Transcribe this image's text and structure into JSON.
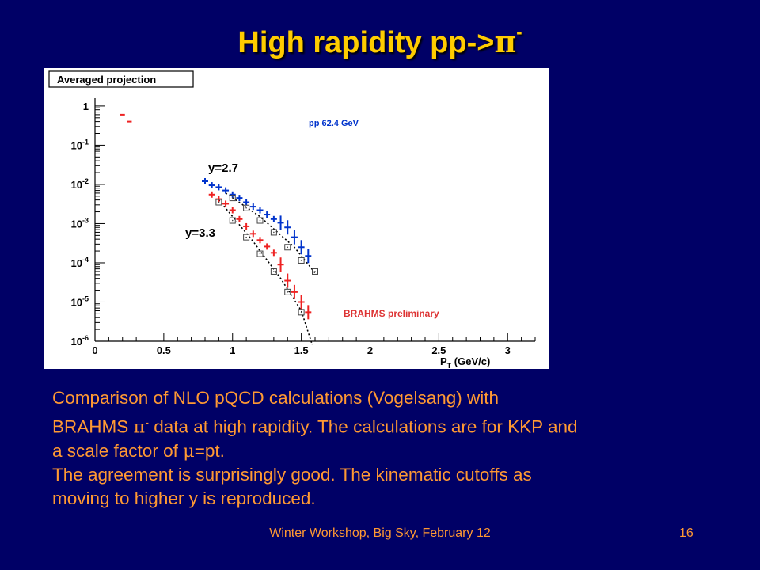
{
  "slide": {
    "title_main": "High rapidity pp->",
    "title_particle": "π",
    "title_charge": "-"
  },
  "body": {
    "line1": "Comparison of NLO pQCD calculations (Vogelsang) with",
    "line2_a": "BRAHMS ",
    "line2_pi": "π",
    "line2_charge": "-",
    "line2_b": " data at high rapidity. The calculations are for KKP and",
    "line3_a": "a scale factor of ",
    "line3_mu": "μ",
    "line3_b": "=pt.",
    "line4": "The agreement is surprisingly good. The kinematic cutoffs as",
    "line5": "moving to higher y is reproduced."
  },
  "footer": {
    "text": "Winter Workshop, Big Sky, February 12",
    "page": "16"
  },
  "colors": {
    "background": "#000066",
    "title": "#ffcc00",
    "body_text": "#ff9933",
    "series_y27": "#0033cc",
    "series_y33": "#ee2222",
    "calc_boxes": "#444444",
    "prelim": "#dd3333"
  },
  "chart_data": {
    "type": "scatter",
    "title": "Averaged projection",
    "xlabel": "P",
    "xlabel_sub": "T",
    "xlabel_unit": "(GeV/c)",
    "ylabel": "",
    "xlim": [
      0,
      3.2
    ],
    "ylim_log10": [
      -6,
      0.2
    ],
    "y_scale": "log",
    "x_ticks": [
      0,
      0.5,
      1,
      1.5,
      2,
      2.5,
      3
    ],
    "x_tick_labels": [
      "0",
      "0.5",
      "1",
      "1.5",
      "2",
      "2.5",
      "3"
    ],
    "y_ticks_log10": [
      0,
      -1,
      -2,
      -3,
      -4,
      -5,
      -6
    ],
    "y_tick_labels": [
      {
        "base": "1",
        "exp": ""
      },
      {
        "base": "10",
        "exp": "-1"
      },
      {
        "base": "10",
        "exp": "-2"
      },
      {
        "base": "10",
        "exp": "-3"
      },
      {
        "base": "10",
        "exp": "-4"
      },
      {
        "base": "10",
        "exp": "-5"
      },
      {
        "base": "10",
        "exp": "-6"
      }
    ],
    "annotations": {
      "energy": "pp 62.4 GeV",
      "label_y27": "y=2.7",
      "label_y33": "y=3.3",
      "preliminary": "BRAHMS preliminary"
    },
    "series": [
      {
        "name": "y=2.7",
        "kind": "data",
        "color": "#0033cc",
        "points": [
          [
            0.8,
            0.012
          ],
          [
            0.85,
            0.0095
          ],
          [
            0.9,
            0.0085
          ],
          [
            0.95,
            0.007
          ],
          [
            1.0,
            0.0055
          ],
          [
            1.05,
            0.0045
          ],
          [
            1.1,
            0.0035
          ],
          [
            1.15,
            0.0027
          ],
          [
            1.2,
            0.0022
          ],
          [
            1.25,
            0.0017
          ],
          [
            1.3,
            0.0013
          ],
          [
            1.35,
            0.00105
          ],
          [
            1.4,
            0.0008
          ],
          [
            1.45,
            0.00045
          ],
          [
            1.5,
            0.00025
          ],
          [
            1.55,
            0.00015
          ]
        ]
      },
      {
        "name": "y=3.3",
        "kind": "data",
        "color": "#ee2222",
        "points": [
          [
            0.85,
            0.0055
          ],
          [
            0.9,
            0.0042
          ],
          [
            0.95,
            0.0032
          ],
          [
            1.0,
            0.0022
          ],
          [
            1.05,
            0.0013
          ],
          [
            1.1,
            0.00085
          ],
          [
            1.15,
            0.00055
          ],
          [
            1.2,
            0.00038
          ],
          [
            1.25,
            0.00026
          ],
          [
            1.3,
            0.00018
          ],
          [
            1.35,
            9e-05
          ],
          [
            1.4,
            3.5e-05
          ],
          [
            1.45,
            1.8e-05
          ],
          [
            1.5,
            1e-05
          ],
          [
            1.55,
            5.5e-06
          ]
        ]
      },
      {
        "name": "NLO y=2.7",
        "kind": "calc",
        "color": "#444444",
        "points": [
          [
            1.0,
            0.0045
          ],
          [
            1.1,
            0.0025
          ],
          [
            1.2,
            0.0012
          ],
          [
            1.3,
            0.0006
          ],
          [
            1.4,
            0.00025
          ],
          [
            1.5,
            0.000115
          ],
          [
            1.6,
            6e-05
          ]
        ]
      },
      {
        "name": "NLO y=3.3",
        "kind": "calc",
        "color": "#444444",
        "points": [
          [
            0.9,
            0.0035
          ],
          [
            1.0,
            0.0012
          ],
          [
            1.1,
            0.00045
          ],
          [
            1.2,
            0.00017
          ],
          [
            1.3,
            6e-05
          ],
          [
            1.4,
            1.8e-05
          ],
          [
            1.5,
            5.5e-06
          ]
        ]
      }
    ],
    "fit_lines": [
      {
        "name": "y=2.7 curve",
        "points": [
          [
            0.95,
            0.006
          ],
          [
            1.2,
            0.0015
          ],
          [
            1.45,
            0.00025
          ],
          [
            1.6,
            5.5e-05
          ]
        ]
      },
      {
        "name": "y=3.3 curve",
        "points": [
          [
            0.9,
            0.004
          ],
          [
            1.15,
            0.00035
          ],
          [
            1.35,
            4e-05
          ],
          [
            1.5,
            6e-06
          ],
          [
            1.58,
            8e-07
          ]
        ]
      }
    ],
    "also": {
      "red_points_low_pt": [
        [
          0.2,
          0.6
        ],
        [
          0.25,
          0.4
        ]
      ]
    },
    "grid": false,
    "legend": "none"
  }
}
